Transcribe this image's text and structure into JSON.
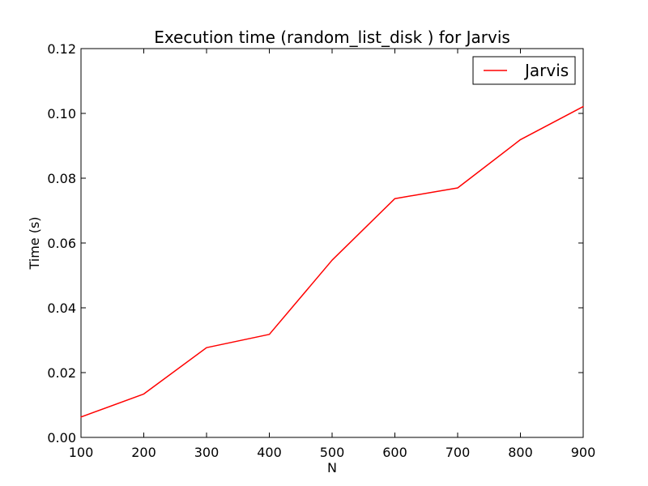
{
  "chart_data": {
    "type": "line",
    "title": "Execution time (random_list_disk ) for Jarvis",
    "xlabel": "N",
    "ylabel": "Time (s)",
    "x": [
      100,
      200,
      300,
      400,
      500,
      600,
      700,
      800,
      900
    ],
    "series": [
      {
        "name": "Jarvis",
        "color": "#ff0000",
        "values": [
          0.0063,
          0.0134,
          0.0277,
          0.0318,
          0.0547,
          0.0737,
          0.077,
          0.0919,
          0.1021
        ]
      }
    ],
    "xlim": [
      100,
      900
    ],
    "ylim": [
      0,
      0.12
    ],
    "xticks": [
      100,
      200,
      300,
      400,
      500,
      600,
      700,
      800,
      900
    ],
    "xtick_labels": [
      "100",
      "200",
      "300",
      "400",
      "500",
      "600",
      "700",
      "800",
      "900"
    ],
    "yticks": [
      0,
      0.02,
      0.04,
      0.06,
      0.08,
      0.1,
      0.12
    ],
    "ytick_labels": [
      "0.00",
      "0.02",
      "0.04",
      "0.06",
      "0.08",
      "0.10",
      "0.12"
    ],
    "grid": false,
    "legend_position": "top-right"
  }
}
